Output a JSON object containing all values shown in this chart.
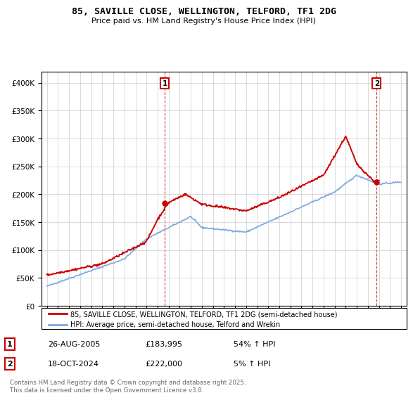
{
  "title": "85, SAVILLE CLOSE, WELLINGTON, TELFORD, TF1 2DG",
  "subtitle": "Price paid vs. HM Land Registry's House Price Index (HPI)",
  "xlim_start": 1994.5,
  "xlim_end": 2027.5,
  "ylim_min": 0,
  "ylim_max": 420000,
  "yticks": [
    0,
    50000,
    100000,
    150000,
    200000,
    250000,
    300000,
    350000,
    400000
  ],
  "ytick_labels": [
    "£0",
    "£50K",
    "£100K",
    "£150K",
    "£200K",
    "£250K",
    "£300K",
    "£350K",
    "£400K"
  ],
  "xticks": [
    1995,
    1996,
    1997,
    1998,
    1999,
    2000,
    2001,
    2002,
    2003,
    2004,
    2005,
    2006,
    2007,
    2008,
    2009,
    2010,
    2011,
    2012,
    2013,
    2014,
    2015,
    2016,
    2017,
    2018,
    2019,
    2020,
    2021,
    2022,
    2023,
    2024,
    2025,
    2026,
    2027
  ],
  "sale1_x": 2005.65,
  "sale1_y": 183995,
  "sale2_x": 2024.79,
  "sale2_y": 222000,
  "hpi_color": "#7aaadd",
  "price_color": "#cc0000",
  "legend_label_price": "85, SAVILLE CLOSE, WELLINGTON, TELFORD, TF1 2DG (semi-detached house)",
  "legend_label_hpi": "HPI: Average price, semi-detached house, Telford and Wrekin",
  "table_row1": [
    "1",
    "26-AUG-2005",
    "£183,995",
    "54% ↑ HPI"
  ],
  "table_row2": [
    "2",
    "18-OCT-2024",
    "£222,000",
    "5% ↑ HPI"
  ],
  "footnote": "Contains HM Land Registry data © Crown copyright and database right 2025.\nThis data is licensed under the Open Government Licence v3.0.",
  "background_color": "#ffffff",
  "grid_color": "#cccccc",
  "title_fontsize": 9.5,
  "subtitle_fontsize": 8.5
}
